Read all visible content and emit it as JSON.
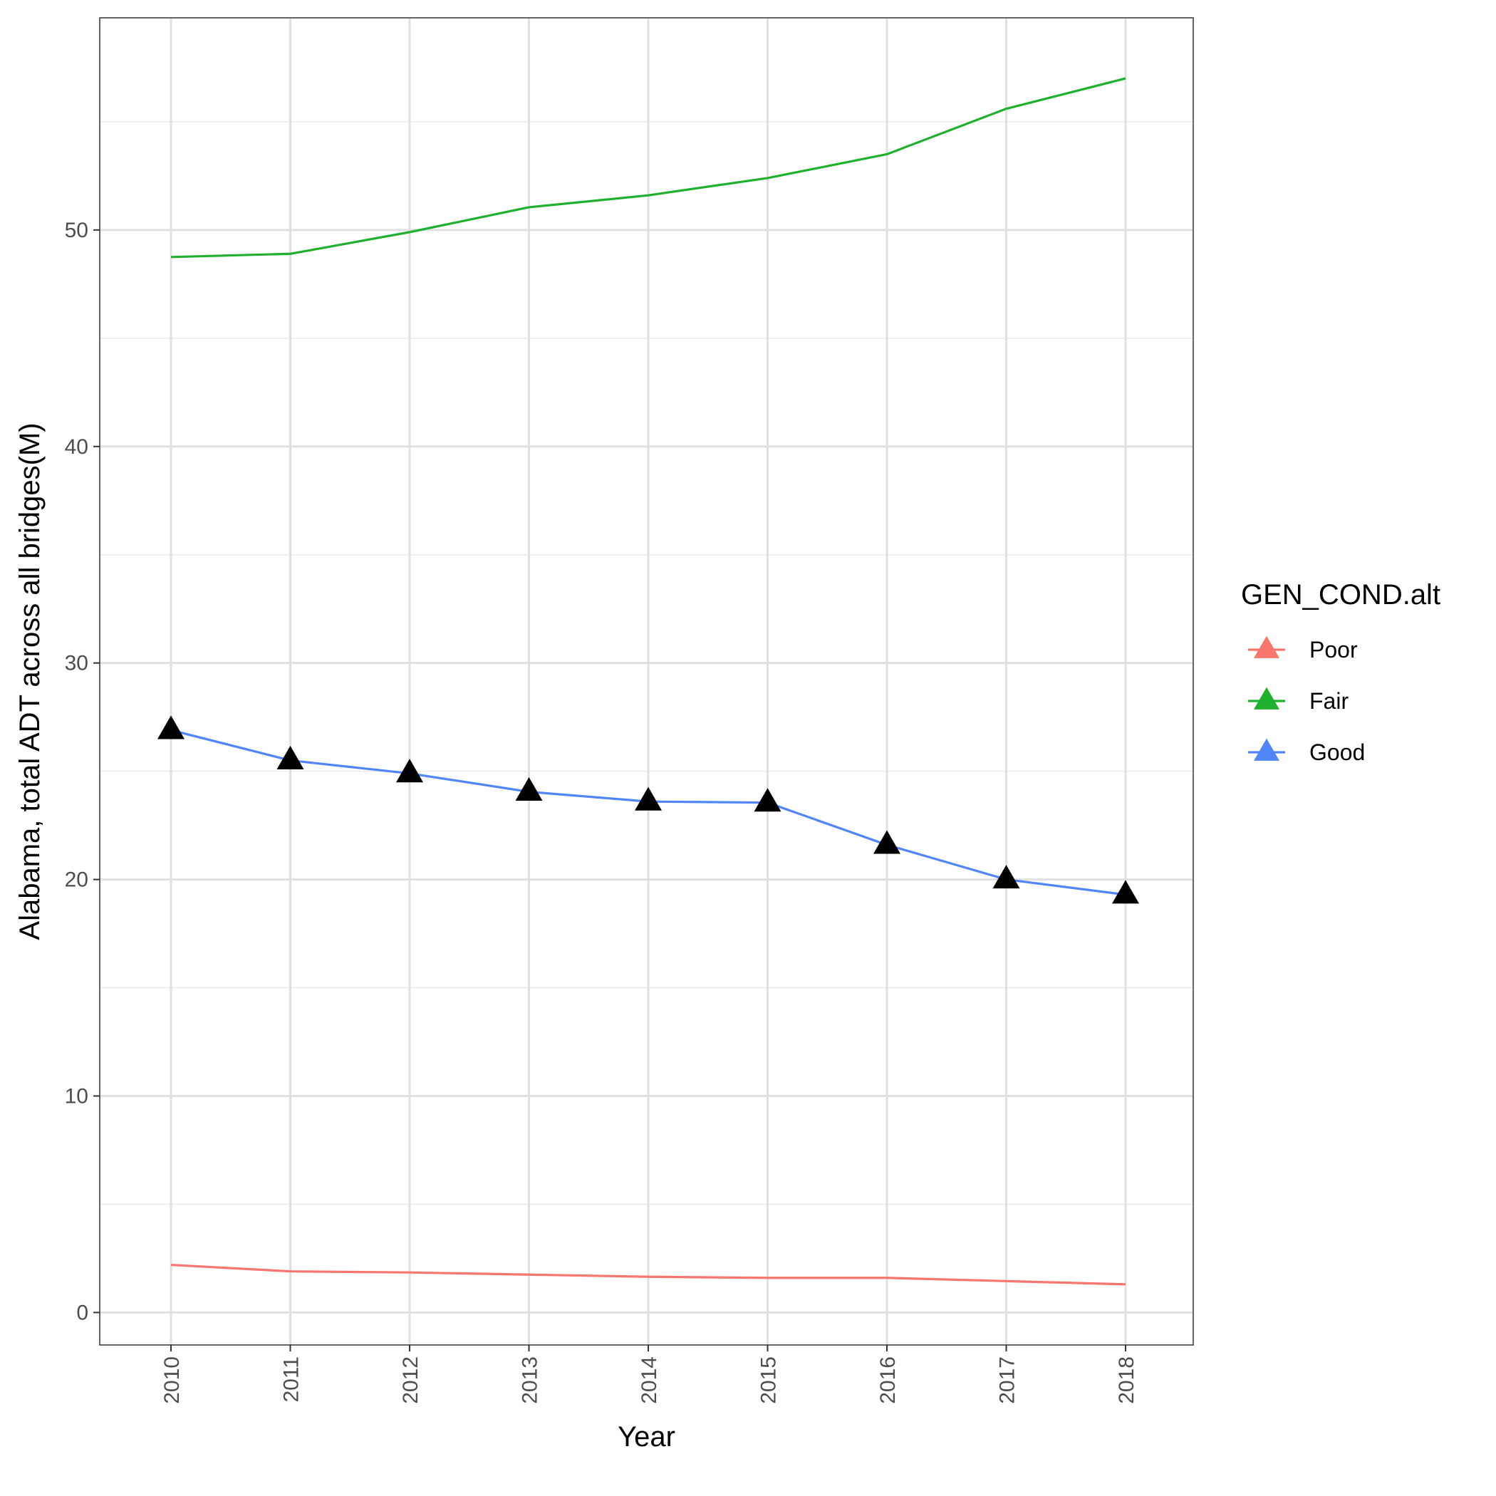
{
  "chart_data": {
    "type": "line",
    "title": "",
    "xlabel": "Year",
    "ylabel": "Alabama, total ADT across all bridges(M)",
    "x": [
      "2010",
      "2011",
      "2012",
      "2013",
      "2014",
      "2015",
      "2016",
      "2017",
      "2018"
    ],
    "yticks": [
      "0",
      "10",
      "20",
      "30",
      "40",
      "50"
    ],
    "ylim": [
      -1.5,
      59.8
    ],
    "grid": true,
    "legend": {
      "title": "GEN_COND.alt",
      "position": "right"
    },
    "series": [
      {
        "name": "Poor",
        "color": "#f8766d",
        "values": [
          2.2,
          1.9,
          1.85,
          1.75,
          1.65,
          1.6,
          1.6,
          1.45,
          1.3
        ]
      },
      {
        "name": "Fair",
        "color": "#1fb12e",
        "values": [
          48.75,
          48.9,
          49.9,
          51.05,
          51.6,
          52.4,
          53.5,
          55.6,
          57.0
        ]
      },
      {
        "name": "Good",
        "color": "#5186fa",
        "values": [
          26.9,
          25.5,
          24.9,
          24.05,
          23.6,
          23.55,
          21.6,
          20.0,
          19.3
        ],
        "markers": true
      }
    ]
  }
}
